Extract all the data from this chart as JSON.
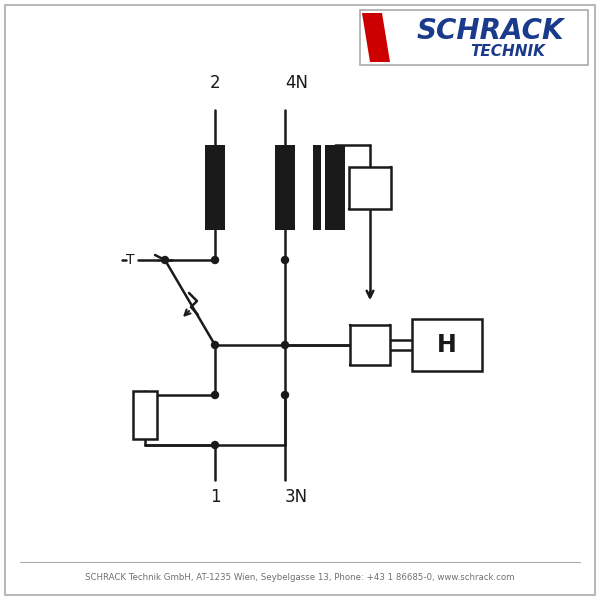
{
  "footer_text": "SCHRACK Technik GmbH, AT-1235 Wien, Seybelgasse 13, Phone: +43 1 86685-0, www.schrack.com",
  "logo_text_schrack": "SCHRACK",
  "logo_text_technik": "TECHNIK",
  "label_2": "2",
  "label_4N": "4N",
  "label_1": "1",
  "label_3N": "3N",
  "label_H": "H",
  "bg_color": "#ffffff",
  "line_color": "#1a1a1a",
  "logo_blue": "#1a3a8c",
  "logo_red": "#cc0000",
  "footer_color": "#707070",
  "border_color": "#aaaaaa",
  "lw": 1.8
}
